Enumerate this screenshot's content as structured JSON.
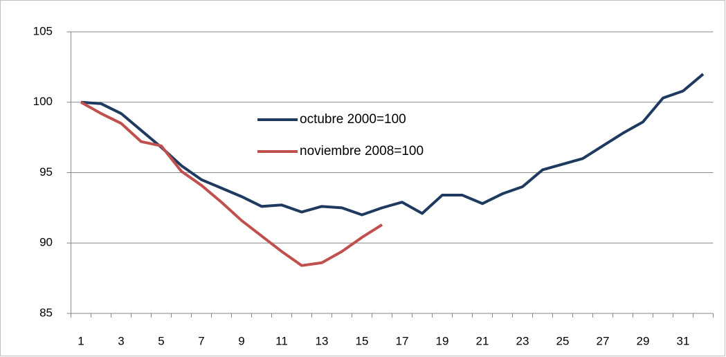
{
  "chart_data": {
    "type": "line",
    "categories": [
      1,
      null,
      3,
      null,
      5,
      null,
      7,
      null,
      9,
      null,
      11,
      null,
      13,
      null,
      15,
      null,
      17,
      null,
      19,
      null,
      21,
      null,
      23,
      null,
      25,
      null,
      27,
      null,
      29,
      null,
      31,
      null
    ],
    "series": [
      {
        "name": "octubre 2000=100",
        "color": "#1f3a5f",
        "values": [
          100,
          99.9,
          99.2,
          98,
          96.8,
          95.5,
          94.5,
          93.9,
          93.3,
          92.6,
          92.7,
          92.2,
          92.6,
          92.5,
          92.0,
          92.5,
          92.9,
          92.1,
          93.4,
          93.4,
          92.8,
          93.5,
          94.0,
          95.2,
          95.6,
          96.0,
          96.9,
          97.8,
          98.6,
          100.3,
          100.8,
          102.0
        ]
      },
      {
        "name": "noviembre 2008=100",
        "color": "#c0504d",
        "values": [
          100,
          99.2,
          98.5,
          97.2,
          96.9,
          95.1,
          94.1,
          92.9,
          91.6,
          90.5,
          89.4,
          88.4,
          88.6,
          89.4,
          90.4,
          91.3,
          null,
          null,
          null,
          null,
          null,
          null,
          null,
          null,
          null,
          null,
          null,
          null,
          null,
          null,
          null,
          null
        ]
      }
    ],
    "ylim": [
      85,
      105
    ],
    "yticks": [
      85,
      90,
      95,
      100,
      105
    ],
    "grid": true,
    "legend": "upper-center"
  }
}
